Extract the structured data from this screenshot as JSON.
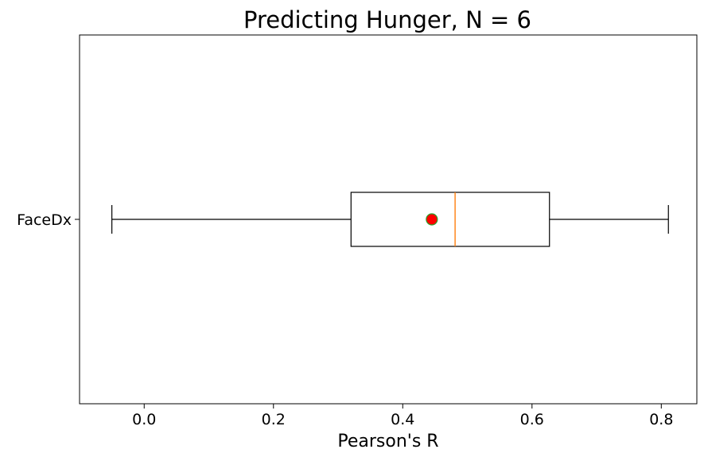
{
  "chart_data": {
    "type": "boxplot",
    "title": "Predicting Hunger, N = 6",
    "xlabel": "Pearson's R",
    "ylabel": "",
    "xlim": [
      -0.1,
      0.855
    ],
    "xticks": [
      0.0,
      0.2,
      0.4,
      0.6,
      0.8
    ],
    "xtick_labels": [
      "0.0",
      "0.2",
      "0.4",
      "0.6",
      "0.8"
    ],
    "orientation": "horizontal",
    "grid": false,
    "boxes": [
      {
        "label": "FaceDx",
        "whisker_low": -0.05,
        "q1": 0.32,
        "median": 0.481,
        "q3": 0.627,
        "whisker_high": 0.811,
        "mean": 0.445
      }
    ],
    "colors": {
      "box": "#000000",
      "median": "#ff7f0e",
      "mean_fill": "#ff0000",
      "mean_edge": "#2ca02c"
    }
  }
}
